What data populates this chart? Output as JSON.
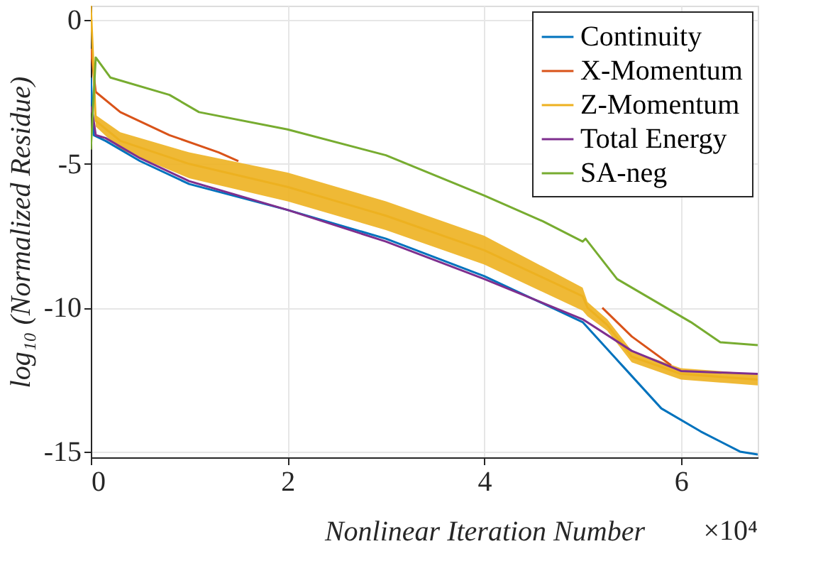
{
  "chart_data": {
    "type": "line",
    "xlabel": "Nonlinear Iteration Number",
    "ylabel": "log₁₀ (Normalized Residue)",
    "annotations": [
      "×10⁴"
    ],
    "xlim": [
      0,
      6.78
    ],
    "xticks": [
      0,
      2,
      4,
      6
    ],
    "ylim": [
      -15.2,
      0.5
    ],
    "yticks": [
      -15,
      -10,
      -5,
      0
    ],
    "grid": true,
    "legend": "top right",
    "line_style": "solid",
    "marker": "none",
    "series": [
      {
        "name": "Continuity",
        "color": "#0072bd",
        "x": [
          0,
          0.03,
          0.15,
          0.5,
          1.0,
          2.0,
          3.0,
          4.0,
          5.0,
          5.4,
          5.8,
          6.2,
          6.6,
          6.78
        ],
        "values": [
          -2.0,
          -4.0,
          -4.2,
          -4.9,
          -5.7,
          -6.6,
          -7.6,
          -8.9,
          -10.5,
          -12.0,
          -13.5,
          -14.3,
          -15.0,
          -15.1
        ]
      },
      {
        "name": "X-Momentum",
        "color": "#d95319",
        "x": [
          0,
          0.05,
          0.3,
          0.8,
          1.3,
          1.5,
          3.0,
          5.2,
          5.5,
          5.9
        ],
        "values": [
          -1.0,
          -2.5,
          -3.2,
          -4.0,
          -4.6,
          -4.9,
          null,
          -10.0,
          -11.0,
          -12.0
        ]
      },
      {
        "name": "Z-Momentum",
        "color": "#edb120",
        "x": [
          0,
          0.05,
          0.3,
          1.0,
          2.0,
          3.0,
          4.0,
          5.0,
          5.05,
          5.25,
          5.5,
          6.0,
          6.78
        ],
        "values": [
          0.5,
          -3.5,
          -4.2,
          -5.0,
          -5.8,
          -6.8,
          -8.0,
          -9.6,
          -10.0,
          -10.6,
          -11.7,
          -12.3,
          -12.5
        ],
        "lower": [
          0.5,
          -3.7,
          -4.5,
          -5.5,
          -6.3,
          -7.3,
          -8.5,
          -10.1,
          -10.3,
          -10.8,
          -11.9,
          -12.5,
          -12.7
        ],
        "upper": [
          0.5,
          -3.3,
          -3.9,
          -4.6,
          -5.3,
          -6.3,
          -7.5,
          -9.3,
          -9.8,
          -10.4,
          -11.5,
          -12.1,
          -12.3
        ]
      },
      {
        "name": "Total Energy",
        "color": "#7e2f8e",
        "x": [
          0,
          0.02,
          0.05,
          0.15,
          0.5,
          1.0,
          2.0,
          3.0,
          4.0,
          5.0,
          5.5,
          6.0,
          6.78
        ],
        "values": [
          -3.0,
          -3.3,
          -4.0,
          -4.1,
          -4.8,
          -5.6,
          -6.6,
          -7.7,
          -9.0,
          -10.4,
          -11.5,
          -12.2,
          -12.3
        ]
      },
      {
        "name": "SA-neg",
        "color": "#77ac30",
        "x": [
          0,
          0.05,
          0.2,
          0.8,
          1.1,
          2.0,
          3.0,
          4.0,
          4.6,
          5.0,
          5.03,
          5.35,
          6.1,
          6.4,
          6.78
        ],
        "values": [
          -4.5,
          -1.3,
          -2.0,
          -2.6,
          -3.2,
          -3.8,
          -4.7,
          -6.1,
          -7.0,
          -7.7,
          -7.6,
          -9.0,
          -10.5,
          -11.2,
          -11.3
        ]
      }
    ]
  }
}
